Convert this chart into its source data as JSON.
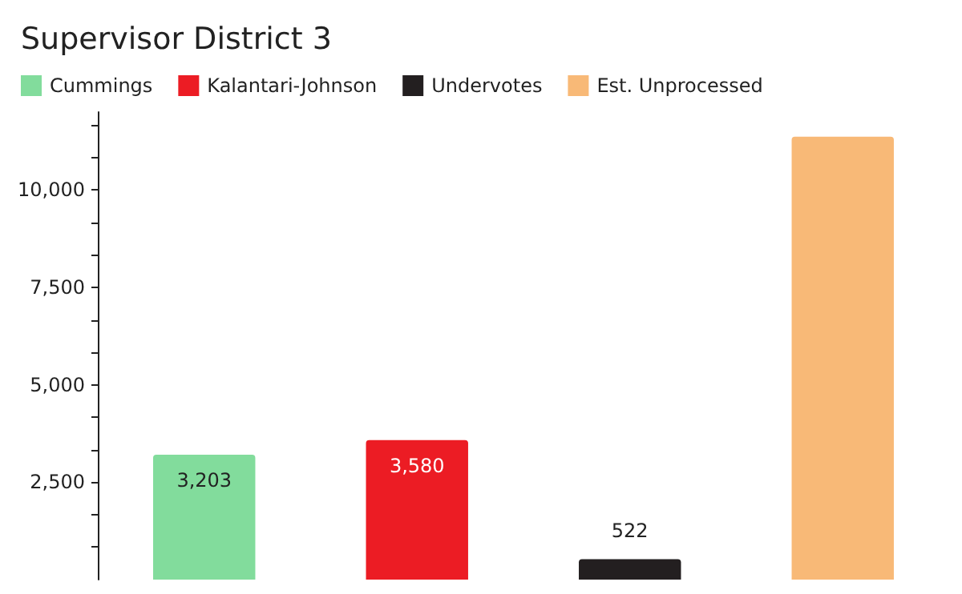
{
  "chart_data": {
    "type": "bar",
    "title": "Supervisor District 3",
    "categories": [
      null,
      null,
      null,
      null
    ],
    "stacked": true,
    "series": [
      {
        "name": "Cummings",
        "color": "#82dc9c",
        "values": [
          3203,
          null,
          null,
          null
        ],
        "value_labels": [
          "3,203",
          null,
          null,
          null
        ]
      },
      {
        "name": "Kalantari-Johnson",
        "color": "#ec1c24",
        "values": [
          null,
          3580,
          null,
          null
        ],
        "value_labels": [
          null,
          "3,580",
          null,
          null
        ]
      },
      {
        "name": "Undervotes",
        "color": "#231f20",
        "values": [
          null,
          null,
          522,
          null
        ],
        "value_labels": [
          null,
          null,
          "522",
          null
        ]
      },
      {
        "name": "Est. Unprocessed",
        "color": "#f8b977",
        "values": [
          null,
          null,
          null,
          11370
        ],
        "value_labels": [
          null,
          null,
          null,
          null
        ]
      }
    ],
    "ylim": [
      0,
      12000
    ],
    "yticks": [
      {
        "value": 833,
        "label": null
      },
      {
        "value": 1667,
        "label": null
      },
      {
        "value": 2500,
        "label": "2,500"
      },
      {
        "value": 3333,
        "label": null
      },
      {
        "value": 4167,
        "label": null
      },
      {
        "value": 5000,
        "label": "5,000"
      },
      {
        "value": 5833,
        "label": null
      },
      {
        "value": 6667,
        "label": null
      },
      {
        "value": 7500,
        "label": "7,500"
      },
      {
        "value": 8333,
        "label": null
      },
      {
        "value": 9167,
        "label": null
      },
      {
        "value": 10000,
        "label": "10,000"
      },
      {
        "value": 10833,
        "label": null
      },
      {
        "value": 11667,
        "label": null
      }
    ],
    "tick_labels": "y",
    "grid": false,
    "legend": "top left"
  }
}
